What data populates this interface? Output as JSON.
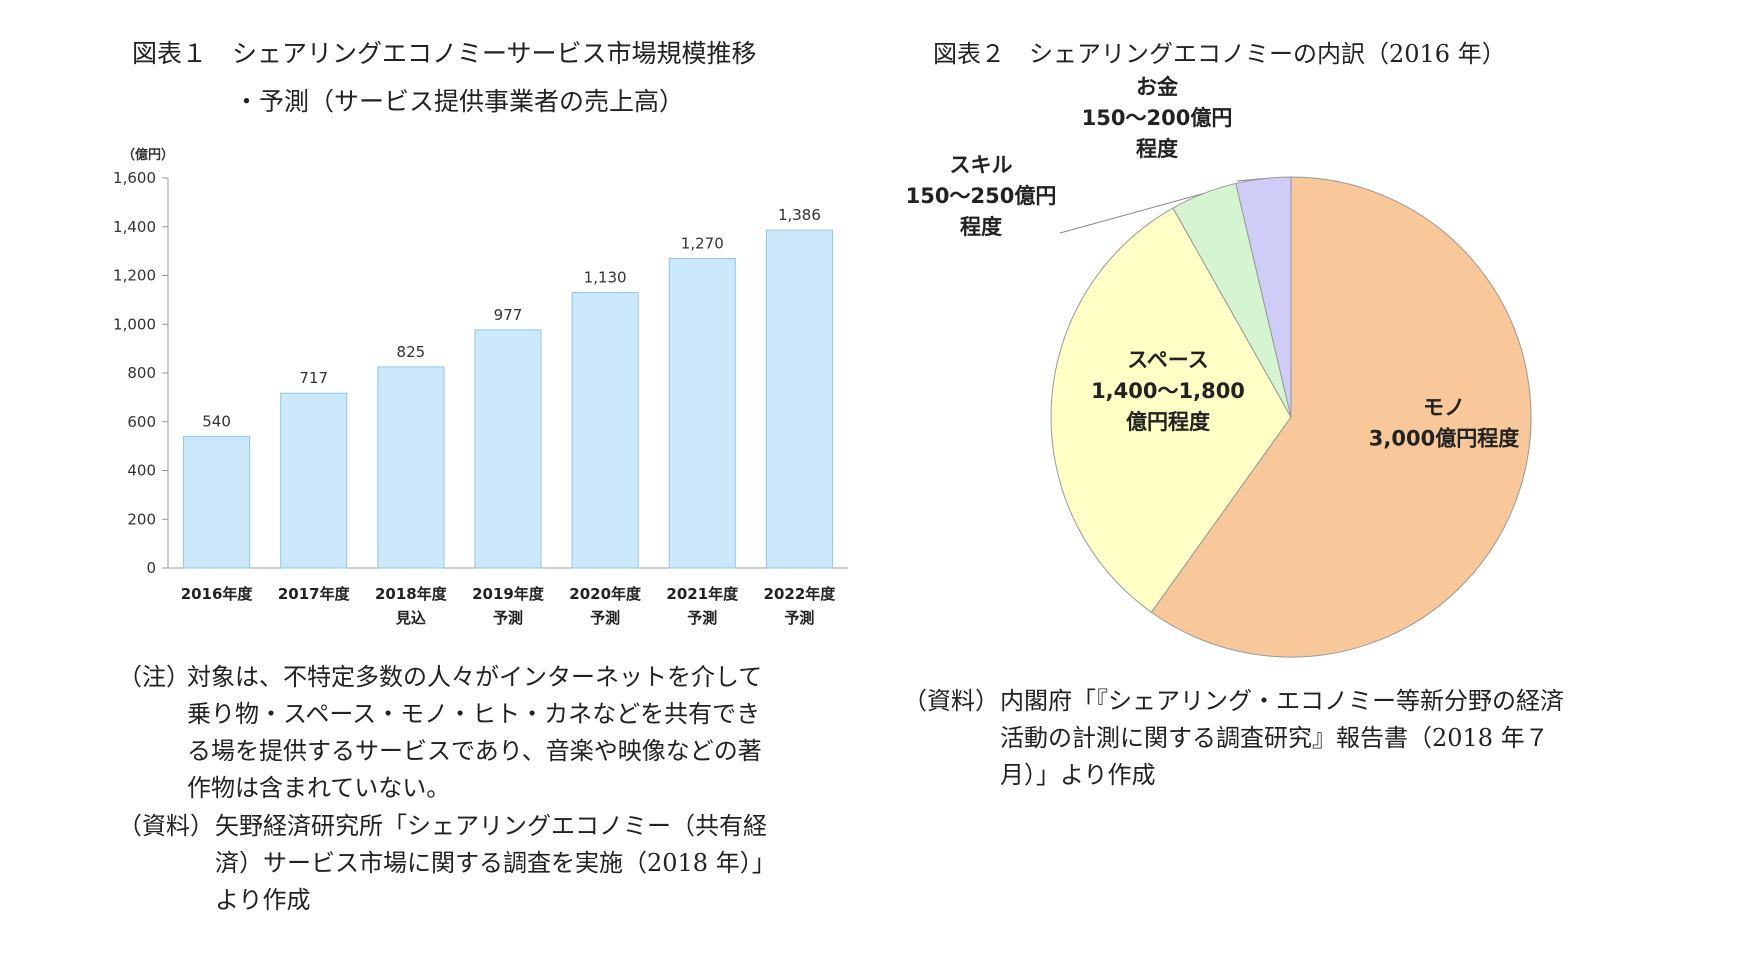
{
  "figure1": {
    "title_line1": "図表１　シェアリングエコノミーサービス市場規模推移",
    "title_line2": "・予測（サービス提供事業者の売上高）",
    "unit": "（億円）",
    "note_tag": "（注）",
    "note_text": "対象は、不特定多数の人々がインターネットを介して乗り物・スペース・モノ・ヒト・カネなどを共有できる場を提供するサービスであり、音楽や映像などの著作物は含まれていない。",
    "note_lines": [
      "対象は、不特定多数の人々がインターネットを介して",
      "乗り物・スペース・モノ・ヒト・カネなどを共有でき",
      "る場を提供するサービスであり、音楽や映像などの著",
      "作物は含まれていない。"
    ],
    "source_tag": "（資料）",
    "source_lines": [
      "矢野経済研究所「シェアリングエコノミー（共有経",
      "済）サービス市場に関する調査を実施（2018 年）」",
      "より作成"
    ]
  },
  "figure2": {
    "title": "図表２　シェアリングエコノミーの内訳（2016 年）",
    "source_tag": "（資料）",
    "source_lines": [
      "内閣府「『シェアリング・エコノミー等新分野の経済",
      "活動の計測に関する調査研究』報告書（2018 年７",
      "月）」より作成"
    ]
  },
  "chart_data": [
    {
      "type": "bar",
      "title": "シェアリングエコノミーサービス市場規模推移・予測（サービス提供事業者の売上高）",
      "ylabel": "（億円）",
      "categories": [
        [
          "2016年度"
        ],
        [
          "2017年度"
        ],
        [
          "2018年度",
          "見込"
        ],
        [
          "2019年度",
          "予測"
        ],
        [
          "2020年度",
          "予測"
        ],
        [
          "2021年度",
          "予測"
        ],
        [
          "2022年度",
          "予測"
        ]
      ],
      "values": [
        540,
        717,
        825,
        977,
        1130,
        1270,
        1386
      ],
      "data_labels": [
        "540",
        "717",
        "825",
        "977",
        "1,130",
        "1,270",
        "1,386"
      ],
      "ylim": [
        0,
        1600
      ],
      "yticks": [
        0,
        200,
        400,
        600,
        800,
        1000,
        1200,
        1400,
        1600
      ],
      "ytick_labels": [
        "0",
        "200",
        "400",
        "600",
        "800",
        "1,000",
        "1,200",
        "1,400",
        "1,600"
      ],
      "grid": false,
      "legend": "none",
      "bar_color": "#cce9fb",
      "bar_edge_color": "#8fc7ea"
    },
    {
      "type": "pie",
      "title": "シェアリングエコノミーの内訳（2016 年）",
      "slices": [
        {
          "name": "モノ",
          "value": 3000,
          "label_lines": [
            "モノ",
            "3,000億円程度"
          ],
          "color": "#f9c89a"
        },
        {
          "name": "スペース",
          "value": 1600,
          "label_lines": [
            "スペース",
            "1,400〜1,800",
            "億円程度"
          ],
          "color": "#ffffc6"
        },
        {
          "name": "スキル",
          "value": 225,
          "label_lines": [
            "スキル",
            "150〜250億円",
            "程度"
          ],
          "color": "#d4f5d0"
        },
        {
          "name": "お金",
          "value": 185,
          "label_lines": [
            "お金",
            "150〜200億円",
            "程度"
          ],
          "color": "#cfcdf7"
        }
      ],
      "start": "12 o'clock",
      "direction": "clockwise",
      "edge_color": "#999999"
    }
  ]
}
